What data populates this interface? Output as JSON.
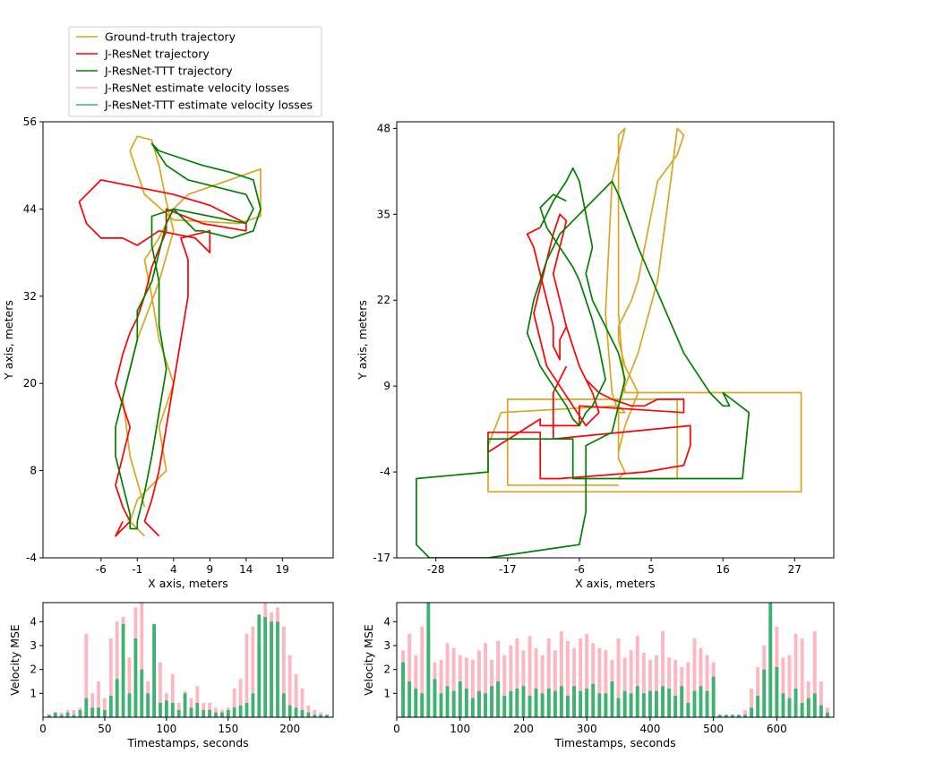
{
  "colors": {
    "ground_truth": "#DAA520",
    "jresnet": "#FF0000",
    "jresnet_ttt": "#008000",
    "jresnet_loss": "#FFB6C1",
    "jresnet_ttt_loss": "#3CB371"
  },
  "legend": {
    "placement": "top-left",
    "entries": [
      {
        "label": "Ground-truth trajectory",
        "color_key": "ground_truth"
      },
      {
        "label": "J-ResNet trajectory",
        "color_key": "jresnet"
      },
      {
        "label": "J-ResNet-TTT trajectory",
        "color_key": "jresnet_ttt"
      },
      {
        "label": "J-ResNet estimate velocity losses",
        "color_key": "jresnet_loss"
      },
      {
        "label": "J-ResNet-TTT estimate velocity losses",
        "color_key": "jresnet_ttt_loss"
      }
    ]
  },
  "chart_data": [
    {
      "type": "line",
      "xlabel": "X axis, meters",
      "ylabel": "Y axis, meters",
      "xlim": [
        -14,
        26
      ],
      "ylim": [
        -4,
        56
      ],
      "xticks": [
        -6,
        -1,
        4,
        9,
        14,
        19
      ],
      "yticks": [
        -4,
        8,
        20,
        32,
        44,
        56
      ],
      "grid": false,
      "series": [
        {
          "name": "Ground-truth trajectory",
          "color_key": "ground_truth",
          "x": [
            0,
            -2,
            -1,
            3,
            2,
            4,
            2,
            1,
            0,
            2,
            3,
            4,
            6,
            16,
            16,
            13,
            4,
            0,
            -2,
            -1,
            1,
            2,
            3,
            4,
            2,
            -1,
            -3,
            -2,
            0
          ],
          "y": [
            -1,
            1,
            4,
            8,
            14,
            20,
            26,
            32,
            37,
            40,
            42,
            44,
            46,
            49.5,
            43,
            42,
            42.5,
            46,
            52,
            54,
            53.5,
            50,
            45,
            41,
            34,
            26,
            18,
            10,
            3
          ]
        },
        {
          "name": "J-ResNet trajectory",
          "color_key": "jresnet",
          "x": [
            2,
            0,
            1,
            2,
            3,
            4,
            5,
            6,
            6,
            5,
            9,
            9,
            7,
            2,
            -1,
            -3,
            -6,
            -8,
            -9,
            -6,
            -1,
            4,
            9,
            12,
            14,
            14,
            8,
            3,
            3,
            1,
            0,
            -1,
            -2,
            -3,
            -4,
            -3,
            -2,
            -3,
            -4,
            -3,
            -2,
            -3,
            -4,
            -3
          ],
          "y": [
            -1,
            1,
            4,
            8,
            14,
            20,
            26,
            32,
            37,
            40,
            41,
            38,
            40,
            41,
            39,
            40,
            40,
            42,
            45,
            48,
            47,
            46,
            44.5,
            43,
            42,
            41,
            42,
            44,
            41,
            36,
            32,
            29,
            27,
            24,
            20,
            17,
            14,
            10,
            6,
            3,
            1,
            0,
            -1,
            1
          ],
          "note": "approximate hand-traced path"
        },
        {
          "name": "J-ResNet-TTT trajectory",
          "color_key": "jresnet_ttt",
          "x": [
            -2,
            -2,
            -3,
            -4,
            -4,
            -3,
            -2,
            -1,
            -1,
            1,
            2,
            3,
            4,
            5,
            6,
            7,
            8,
            12,
            15,
            16,
            15,
            12,
            8,
            2,
            1,
            3,
            6,
            10,
            14,
            15,
            14,
            4,
            1,
            1,
            2,
            2,
            3,
            2,
            1,
            0,
            -1,
            -1,
            -2
          ],
          "y": [
            0,
            2,
            6,
            10,
            14,
            18,
            22,
            26,
            30,
            34,
            38,
            42,
            44,
            43,
            42,
            41,
            41,
            40,
            41,
            44,
            48,
            49,
            50,
            52,
            53,
            50,
            48,
            47,
            46,
            44,
            42,
            44,
            43,
            39,
            34,
            28,
            22,
            16,
            10,
            5,
            1,
            0,
            0
          ],
          "note": "approximate hand-traced path"
        }
      ]
    },
    {
      "type": "line",
      "xlabel": "X axis, meters",
      "ylabel": "Y axis, meters",
      "xlim": [
        -34,
        33
      ],
      "ylim": [
        -17,
        49
      ],
      "xticks": [
        -28,
        -17,
        -6,
        5,
        16,
        27
      ],
      "yticks": [
        -17,
        -4,
        9,
        22,
        35,
        48
      ],
      "grid": false,
      "series": [
        {
          "name": "Ground-truth trajectory",
          "color_key": "ground_truth",
          "x": [
            0,
            1,
            3,
            1,
            0,
            0,
            1,
            2,
            3,
            4,
            5,
            6,
            9,
            10,
            9,
            9,
            8,
            6,
            3,
            1,
            0,
            1,
            0,
            -1,
            -2,
            -1,
            1,
            0,
            0,
            1,
            28,
            28,
            -20,
            -20,
            -18,
            0,
            0,
            1,
            0,
            9,
            9,
            -17,
            -17,
            0
          ],
          "y": [
            -1,
            3,
            8,
            12,
            16,
            18,
            20,
            22,
            25,
            30,
            35,
            40,
            44,
            47,
            48,
            48,
            40,
            25,
            14,
            9,
            6,
            5,
            5,
            8,
            20,
            40,
            48,
            47,
            20,
            8,
            8,
            -7,
            -7,
            0,
            5,
            6,
            -2,
            -4,
            -5,
            -5,
            7,
            7,
            -6,
            -6
          ],
          "note": "approximate hand-traced path"
        },
        {
          "name": "J-ResNet trajectory",
          "color_key": "jresnet",
          "x": [
            -12,
            -14,
            -13,
            -12,
            -11,
            -10,
            -10,
            -9,
            -9,
            -8,
            -7,
            -6,
            -5,
            -4,
            -3,
            -5,
            -7,
            -9,
            -11,
            -12,
            -13,
            -12,
            -11,
            -10,
            -9,
            -8,
            -9,
            -10,
            -9,
            -8,
            -7,
            -6,
            -5,
            -3,
            -1,
            2,
            4,
            6,
            10,
            10,
            -6,
            -6,
            -12,
            -12,
            -20,
            -20,
            -12,
            -12,
            -9,
            4,
            10,
            11,
            11,
            -10,
            -10,
            -9,
            -8
          ],
          "y": [
            33,
            32,
            30,
            26,
            22,
            18,
            15,
            13,
            16,
            18,
            15,
            12,
            10,
            8,
            5,
            3,
            6,
            9,
            12,
            16,
            20,
            24,
            28,
            32,
            35,
            34,
            30,
            26,
            22,
            18,
            15,
            12,
            10,
            8,
            7,
            6,
            6,
            7,
            7,
            5,
            6,
            3,
            3,
            4,
            -1,
            2,
            2,
            -5,
            -5,
            -4,
            -3,
            0,
            3,
            1,
            8,
            10,
            12
          ],
          "note": "approximate hand-traced path"
        },
        {
          "name": "J-ResNet-TTT trajectory",
          "color_key": "jresnet_ttt",
          "x": [
            -8,
            -10,
            -12,
            -11,
            -9,
            -7,
            -6,
            -5,
            -4,
            -3,
            -2,
            -3,
            -4,
            -5,
            -6,
            -7,
            -8,
            -10,
            -12,
            -14,
            -13,
            -11,
            -9,
            -7,
            -5,
            -3,
            -1,
            0,
            3,
            10,
            14,
            16,
            17,
            16,
            20,
            19,
            -7,
            -7,
            -20,
            -20,
            -31,
            -31,
            -29,
            -20,
            -6,
            -5,
            -5,
            -1,
            0,
            1,
            0,
            -2,
            -4,
            -5,
            -4,
            -5,
            -6,
            -7,
            -8,
            -10,
            -12
          ],
          "y": [
            37,
            38,
            36,
            33,
            30,
            27,
            25,
            22,
            19,
            15,
            10,
            8,
            6,
            5,
            3,
            4,
            6,
            9,
            12,
            17,
            22,
            28,
            32,
            34,
            36,
            38,
            40,
            38,
            30,
            14,
            8,
            6,
            6,
            8,
            5,
            -5,
            -5,
            1,
            1,
            -4,
            -5,
            -15,
            -17,
            -17,
            -15,
            -10,
            0,
            2,
            6,
            10,
            14,
            18,
            22,
            26,
            30,
            35,
            40,
            42,
            40,
            37,
            33
          ],
          "note": "approximate hand-traced path"
        }
      ]
    },
    {
      "type": "bar",
      "xlabel": "Timestamps, seconds",
      "ylabel": "Velocity MSE",
      "xlim": [
        0,
        235
      ],
      "ylim": [
        0,
        4.8
      ],
      "xticks": [
        0,
        50,
        100,
        150,
        200
      ],
      "yticks": [
        1,
        2,
        3,
        4
      ],
      "grid": false,
      "x": [
        5,
        10,
        15,
        20,
        25,
        30,
        35,
        40,
        45,
        50,
        55,
        60,
        65,
        70,
        75,
        80,
        85,
        90,
        95,
        100,
        105,
        110,
        115,
        120,
        125,
        130,
        135,
        140,
        145,
        150,
        155,
        160,
        165,
        170,
        175,
        180,
        185,
        190,
        195,
        200,
        205,
        210,
        215,
        220,
        225,
        230
      ],
      "series": [
        {
          "name": "J-ResNet estimate velocity losses",
          "color_key": "jresnet_loss",
          "values": [
            0.1,
            0.2,
            0.2,
            0.3,
            0.3,
            0.4,
            3.5,
            1.0,
            1.5,
            0.8,
            3.3,
            4.0,
            4.2,
            2.5,
            4.6,
            4.8,
            1.5,
            1.2,
            2.3,
            1.0,
            1.8,
            0.6,
            1.1,
            0.8,
            1.3,
            0.6,
            0.6,
            0.4,
            0.3,
            0.4,
            1.2,
            1.6,
            3.5,
            3.8,
            3.2,
            4.8,
            4.4,
            4.6,
            3.8,
            2.6,
            1.8,
            1.2,
            0.5,
            0.3,
            0.2,
            0.1
          ]
        },
        {
          "name": "J-ResNet-TTT estimate velocity losses",
          "color_key": "jresnet_ttt_loss",
          "values": [
            0.1,
            0.2,
            0.1,
            0.2,
            0.1,
            0.3,
            0.8,
            0.4,
            0.4,
            0.3,
            0.9,
            1.6,
            3.9,
            1.0,
            3.3,
            2.0,
            1.0,
            3.9,
            0.6,
            0.7,
            0.6,
            0.3,
            1.0,
            0.4,
            0.6,
            0.3,
            0.3,
            0.2,
            0.2,
            0.3,
            0.4,
            0.5,
            0.6,
            1.0,
            4.3,
            4.2,
            4.0,
            4.0,
            1.0,
            0.5,
            0.4,
            0.3,
            0.2,
            0.1,
            0.1,
            0.1
          ]
        }
      ]
    },
    {
      "type": "bar",
      "xlabel": "Timestamps, seconds",
      "ylabel": "Velocity MSE",
      "xlim": [
        0,
        690
      ],
      "ylim": [
        0,
        4.8
      ],
      "xticks": [
        0,
        100,
        200,
        300,
        400,
        500,
        600
      ],
      "yticks": [
        1,
        2,
        3,
        4
      ],
      "grid": false,
      "x": [
        10,
        20,
        30,
        40,
        50,
        60,
        70,
        80,
        90,
        100,
        110,
        120,
        130,
        140,
        150,
        160,
        170,
        180,
        190,
        200,
        210,
        220,
        230,
        240,
        250,
        260,
        270,
        280,
        290,
        300,
        310,
        320,
        330,
        340,
        350,
        360,
        370,
        380,
        390,
        400,
        410,
        420,
        430,
        440,
        450,
        460,
        470,
        480,
        490,
        500,
        510,
        520,
        530,
        540,
        550,
        560,
        570,
        580,
        590,
        600,
        610,
        620,
        630,
        640,
        650,
        660,
        670,
        680
      ],
      "series": [
        {
          "name": "J-ResNet estimate velocity losses",
          "color_key": "jresnet_loss",
          "values": [
            2.8,
            3.5,
            2.6,
            3.8,
            3.5,
            2.3,
            2.4,
            3.1,
            2.9,
            2.6,
            2.5,
            2.4,
            2.8,
            3.1,
            2.4,
            3.2,
            2.6,
            3.0,
            3.3,
            2.8,
            3.4,
            2.9,
            2.6,
            3.3,
            2.8,
            3.6,
            3.2,
            2.9,
            3.3,
            3.5,
            3.1,
            2.9,
            2.8,
            2.4,
            3.3,
            2.5,
            2.8,
            3.4,
            2.7,
            2.4,
            2.6,
            3.6,
            2.5,
            2.4,
            2.1,
            2.3,
            3.3,
            2.9,
            2.6,
            2.3,
            0.1,
            0.1,
            0.1,
            0.1,
            0.3,
            1.2,
            2.1,
            3.0,
            4.2,
            3.8,
            2.5,
            2.6,
            3.5,
            3.3,
            1.5,
            3.6,
            1.5,
            0.4
          ]
        },
        {
          "name": "J-ResNet-TTT estimate velocity losses",
          "color_key": "jresnet_ttt_loss",
          "values": [
            2.3,
            1.5,
            1.2,
            1.0,
            4.8,
            1.6,
            1.0,
            1.3,
            1.1,
            1.5,
            1.2,
            0.8,
            1.1,
            1.0,
            1.3,
            1.5,
            0.9,
            1.1,
            1.2,
            1.3,
            0.9,
            1.2,
            1.0,
            1.2,
            1.1,
            1.3,
            0.9,
            1.3,
            1.1,
            1.2,
            1.4,
            1.0,
            1.0,
            1.5,
            0.8,
            1.1,
            1.0,
            1.3,
            1.0,
            1.1,
            1.1,
            1.3,
            1.2,
            0.9,
            1.3,
            0.6,
            1.1,
            1.3,
            1.1,
            1.7,
            0.1,
            0.1,
            0.1,
            0.1,
            0.1,
            0.4,
            0.9,
            2.0,
            4.8,
            2.1,
            1.0,
            0.8,
            1.2,
            0.6,
            0.8,
            1.0,
            0.5,
            0.2
          ]
        }
      ]
    }
  ]
}
